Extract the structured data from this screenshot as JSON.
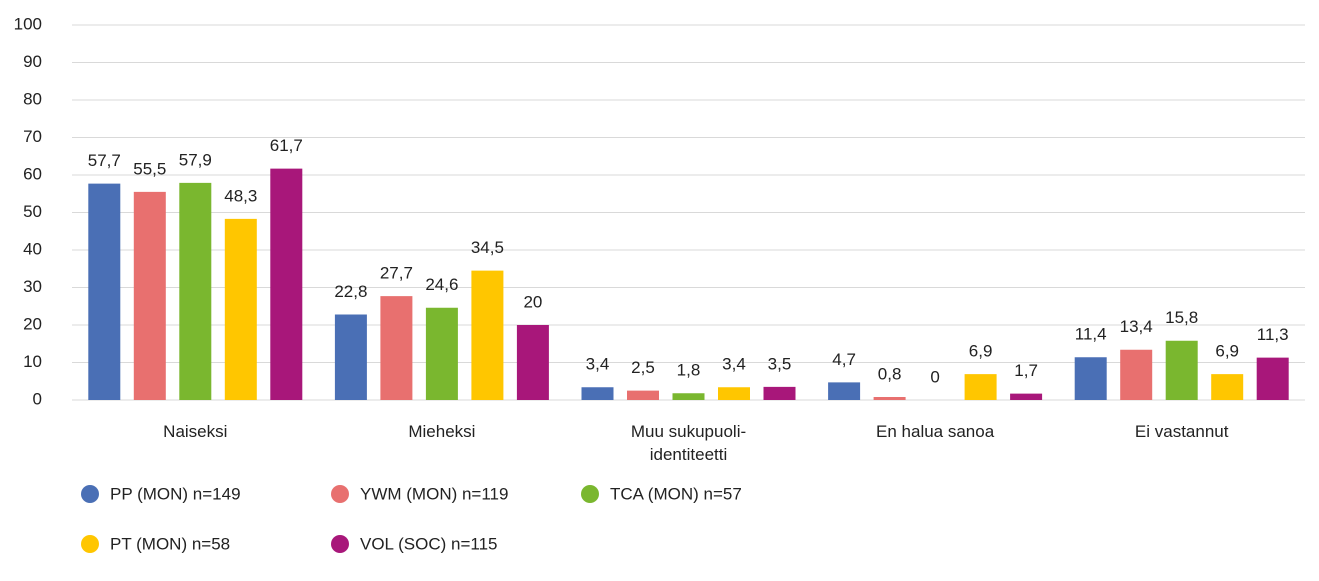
{
  "chart_data": {
    "type": "bar",
    "categories": [
      "Naiseksi",
      "Mieheksi",
      "Muu sukupuoli-identiteetti",
      "En halua sanoa",
      "Ei vastannut"
    ],
    "series": [
      {
        "name": "PP (MON) n=149",
        "color": "#4a6fb5",
        "values": [
          57.7,
          22.8,
          3.4,
          4.7,
          11.4
        ],
        "value_labels": [
          "57,7",
          "22,8",
          "3,4",
          "4,7",
          "11,4"
        ]
      },
      {
        "name": "YWM (MON) n=119",
        "color": "#e8706f",
        "values": [
          55.5,
          27.7,
          2.5,
          0.8,
          13.4
        ],
        "value_labels": [
          "55,5",
          "27,7",
          "2,5",
          "0,8",
          "13,4"
        ]
      },
      {
        "name": "TCA (MON) n=57",
        "color": "#7ab72f",
        "values": [
          57.9,
          24.6,
          1.8,
          0,
          15.8
        ],
        "value_labels": [
          "57,9",
          "24,6",
          "1,8",
          "0",
          "15,8"
        ]
      },
      {
        "name": "PT (MON) n=58",
        "color": "#ffc600",
        "values": [
          48.3,
          34.5,
          3.4,
          6.9,
          6.9
        ],
        "value_labels": [
          "48,3",
          "34,5",
          "3,4",
          "6,9",
          "6,9"
        ]
      },
      {
        "name": "VOL (SOC) n=115",
        "color": "#a8177a",
        "values": [
          61.7,
          20,
          3.5,
          1.7,
          11.3
        ],
        "value_labels": [
          "61,7",
          "20",
          "3,5",
          "1,7",
          "11,3"
        ]
      }
    ],
    "ylim": [
      0,
      100
    ],
    "yticks": [
      0,
      10,
      20,
      30,
      40,
      50,
      60,
      70,
      80,
      90,
      100
    ],
    "grid": true,
    "legend": "bottom-left"
  }
}
